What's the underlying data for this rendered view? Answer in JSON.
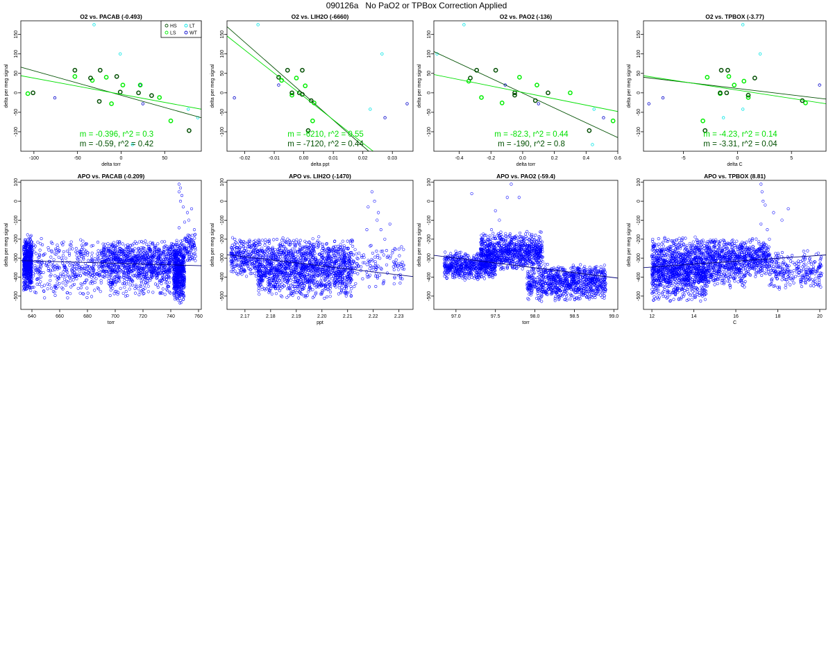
{
  "figure_title": "090126a   No PaO2 or TPBox Correction Applied",
  "colors": {
    "HS": "#004d00",
    "LS": "#00ee00",
    "LT": "#00e5e5",
    "WT": "#0000cc",
    "fit_dark": "#005000",
    "fit_light": "#00e000",
    "apo_points": "#0000ff",
    "apo_fit": "#00007a"
  },
  "legend": [
    {
      "code": "HS",
      "label": "HS",
      "color": "#004d00"
    },
    {
      "code": "LT",
      "label": "LT",
      "color": "#00e5e5"
    },
    {
      "code": "LS",
      "label": "LS",
      "color": "#00ee00"
    },
    {
      "code": "WT",
      "label": "WT",
      "color": "#0000cc"
    }
  ],
  "chart_data": [
    {
      "type": "scatter",
      "title": "O2 vs. PACAB (-0.493)",
      "xlabel": "delta torr",
      "ylabel": "delta per meg signal",
      "xlim": [
        -115,
        92
      ],
      "ylim": [
        -150,
        185
      ],
      "xticks": [
        -100,
        -50,
        0,
        50
      ],
      "yticks": [
        -100,
        -50,
        0,
        50,
        100,
        150
      ],
      "legend": true,
      "points": {
        "HS": [
          [
            -101,
            0
          ],
          [
            -53,
            58
          ],
          [
            -35,
            38
          ],
          [
            -24,
            58
          ],
          [
            -25,
            -22
          ],
          [
            -5,
            42
          ],
          [
            -1,
            2
          ],
          [
            20,
            0
          ],
          [
            35,
            -7
          ],
          [
            78,
            -97
          ]
        ],
        "LS": [
          [
            -107,
            -2
          ],
          [
            -53,
            42
          ],
          [
            -33,
            32
          ],
          [
            -17,
            40
          ],
          [
            -11,
            -28
          ],
          [
            2,
            20
          ],
          [
            22,
            20
          ],
          [
            44,
            -12
          ],
          [
            57,
            -72
          ]
        ],
        "LT": [
          [
            -31,
            175
          ],
          [
            -1,
            100
          ],
          [
            77,
            -42
          ],
          [
            88,
            -64
          ],
          [
            13,
            -133
          ]
        ],
        "WT": [
          [
            -76,
            -13
          ],
          [
            22,
            20
          ],
          [
            25,
            -28
          ]
        ]
      },
      "fits": [
        {
          "m": -0.59,
          "r2": 0.42,
          "label": "m = -0.59, r^2 = 0.42",
          "color": "#005000",
          "line": [
            [
              -115,
              66
            ],
            [
              92,
              -64
            ]
          ]
        },
        {
          "m": -0.396,
          "r2": 0.3,
          "label": "m = -0.396, r^2 = 0.3",
          "color": "#00e000",
          "line": [
            [
              -115,
              44
            ],
            [
              92,
              -42
            ]
          ]
        }
      ]
    },
    {
      "type": "scatter",
      "title": "O2 vs. LIH2O (-6660)",
      "xlabel": "delta ppt",
      "ylabel": "delta per meg signal",
      "xlim": [
        -0.026,
        0.037
      ],
      "ylim": [
        -150,
        185
      ],
      "xticks": [
        -0.02,
        -0.01,
        0.0,
        0.01,
        0.02,
        0.03
      ],
      "yticks": [
        -100,
        -50,
        0,
        50,
        100,
        150
      ],
      "legend": false,
      "points": {
        "HS": [
          [
            -0.0085,
            40
          ],
          [
            -0.0055,
            58
          ],
          [
            -0.004,
            0
          ],
          [
            -0.0015,
            0
          ],
          [
            -0.0005,
            -4
          ],
          [
            -0.0005,
            58
          ],
          [
            0.0025,
            -20
          ],
          [
            0.0015,
            -97
          ]
        ],
        "LS": [
          [
            -0.0075,
            32
          ],
          [
            -0.004,
            -6
          ],
          [
            -0.0025,
            38
          ],
          [
            0.0005,
            18
          ],
          [
            0.0035,
            -26
          ],
          [
            0.003,
            -72
          ]
        ],
        "LT": [
          [
            -0.0155,
            175
          ],
          [
            0.0265,
            100
          ],
          [
            0.0225,
            -42
          ]
        ],
        "WT": [
          [
            -0.0235,
            -13
          ],
          [
            -0.0085,
            20
          ],
          [
            0.0275,
            -64
          ],
          [
            0.035,
            -28
          ]
        ]
      },
      "fits": [
        {
          "m": -7120,
          "r2": 0.44,
          "label": "m = -7120, r^2 = 0.44",
          "color": "#005000",
          "line": [
            [
              -0.026,
              170
            ],
            [
              0.022,
              -150
            ]
          ]
        },
        {
          "m": -6210,
          "r2": 0.55,
          "label": "m = -6210, r^2 = 0.55",
          "color": "#00e000",
          "line": [
            [
              -0.026,
              146
            ],
            [
              0.0235,
              -150
            ]
          ]
        }
      ]
    },
    {
      "type": "scatter",
      "title": "O2 vs. PAO2 (-136)",
      "xlabel": "delta torr",
      "ylabel": "delta per meg signal",
      "xlim": [
        -0.56,
        0.6
      ],
      "ylim": [
        -150,
        185
      ],
      "xticks": [
        -0.4,
        -0.2,
        0.0,
        0.2,
        0.4,
        0.6
      ],
      "yticks": [
        -100,
        -50,
        0,
        50,
        100,
        150
      ],
      "legend": false,
      "points": {
        "HS": [
          [
            -0.33,
            38
          ],
          [
            -0.29,
            58
          ],
          [
            -0.17,
            58
          ],
          [
            -0.05,
            0
          ],
          [
            -0.05,
            -6
          ],
          [
            0.08,
            -20
          ],
          [
            0.16,
            0
          ],
          [
            0.42,
            -97
          ]
        ],
        "LS": [
          [
            -0.34,
            30
          ],
          [
            -0.26,
            -12
          ],
          [
            -0.13,
            -26
          ],
          [
            -0.02,
            40
          ],
          [
            0.09,
            20
          ],
          [
            0.3,
            0
          ],
          [
            0.57,
            -72
          ]
        ],
        "LT": [
          [
            -0.37,
            175
          ],
          [
            -0.54,
            100
          ],
          [
            0.45,
            -42
          ],
          [
            0.44,
            -133
          ]
        ],
        "WT": [
          [
            -0.11,
            20
          ],
          [
            0.1,
            -28
          ],
          [
            0.51,
            -64
          ]
        ]
      },
      "fits": [
        {
          "m": -190,
          "r2": 0.8,
          "label": "m = -190, r^2 = 0.8",
          "color": "#005000",
          "line": [
            [
              -0.56,
              106
            ],
            [
              0.6,
              -115
            ]
          ]
        },
        {
          "m": -82.3,
          "r2": 0.44,
          "label": "m = -82.3, r^2 = 0.44",
          "color": "#00e000",
          "line": [
            [
              -0.56,
              47
            ],
            [
              0.6,
              -48
            ]
          ]
        }
      ]
    },
    {
      "type": "scatter",
      "title": "O2 vs. TPBOX (-3.77)",
      "xlabel": "delta C",
      "ylabel": "delta per meg signal",
      "xlim": [
        -8.7,
        8.2
      ],
      "ylim": [
        -150,
        185
      ],
      "xticks": [
        -5,
        0,
        5
      ],
      "yticks": [
        -100,
        -50,
        0,
        50,
        100,
        150
      ],
      "legend": false,
      "points": {
        "HS": [
          [
            -3.0,
            -97
          ],
          [
            -1.6,
            0
          ],
          [
            -1.5,
            58
          ],
          [
            -1.0,
            0
          ],
          [
            -0.9,
            58
          ],
          [
            1.0,
            -6
          ],
          [
            1.6,
            38
          ],
          [
            6.0,
            -20
          ]
        ],
        "LS": [
          [
            -3.2,
            -72
          ],
          [
            -2.8,
            40
          ],
          [
            -1.6,
            -2
          ],
          [
            -0.8,
            42
          ],
          [
            -0.3,
            20
          ],
          [
            0.6,
            30
          ],
          [
            1.0,
            -12
          ],
          [
            6.3,
            -26
          ]
        ],
        "LT": [
          [
            0.5,
            175
          ],
          [
            2.1,
            100
          ],
          [
            0.5,
            -42
          ],
          [
            -1.3,
            -64
          ]
        ],
        "WT": [
          [
            -8.2,
            -28
          ],
          [
            -6.9,
            -13
          ],
          [
            7.6,
            20
          ]
        ]
      },
      "fits": [
        {
          "m": -3.31,
          "r2": 0.04,
          "label": "m = -3.31, r^2 = 0.04",
          "color": "#005000",
          "line": [
            [
              -8.7,
              40
            ],
            [
              8.2,
              -16
            ]
          ]
        },
        {
          "m": -4.23,
          "r2": 0.14,
          "label": "m = -4.23, r^2 = 0.14",
          "color": "#00e000",
          "line": [
            [
              -8.7,
              44
            ],
            [
              8.2,
              -28
            ]
          ]
        }
      ]
    },
    {
      "type": "scatter",
      "title": "APO vs. PACAB (-0.209)",
      "xlabel": "torr",
      "ylabel": "delta per meg signal",
      "xlim": [
        632,
        762
      ],
      "ylim": [
        -570,
        110
      ],
      "xticks": [
        640,
        660,
        680,
        700,
        720,
        740,
        760
      ],
      "yticks": [
        -500,
        -400,
        -300,
        -200,
        -100,
        0,
        100
      ],
      "legend": false,
      "cloud": [
        {
          "x": [
            634,
            640
          ],
          "y": [
            -480,
            -170
          ],
          "n": 520
        },
        {
          "x": [
            640,
            690
          ],
          "y": [
            -520,
            -190
          ],
          "n": 360
        },
        {
          "x": [
            690,
            742
          ],
          "y": [
            -420,
            -200
          ],
          "n": 820
        },
        {
          "x": [
            695,
            740
          ],
          "y": [
            -520,
            -300
          ],
          "n": 220
        },
        {
          "x": [
            742,
            750
          ],
          "y": [
            -540,
            -200
          ],
          "n": 560
        },
        {
          "x": [
            750,
            758
          ],
          "y": [
            -340,
            -160
          ],
          "n": 80
        }
      ],
      "outliers": [
        [
          746,
          90
        ],
        [
          747,
          70
        ],
        [
          746,
          50
        ],
        [
          748,
          30
        ],
        [
          747,
          0
        ],
        [
          749,
          -30
        ],
        [
          752,
          -60
        ],
        [
          755,
          -40
        ],
        [
          753,
          -100
        ],
        [
          757,
          -150
        ],
        [
          746,
          -140
        ],
        [
          750,
          -110
        ]
      ],
      "fits": [
        {
          "line": [
            [
              632,
              -313
            ],
            [
              762,
              -340
            ]
          ],
          "color": "#00007a"
        }
      ]
    },
    {
      "type": "scatter",
      "title": "APO vs. LIH2O (-1470)",
      "xlabel": "ppt",
      "ylabel": "delta per meg signal",
      "xlim": [
        2.163,
        2.2355
      ],
      "ylim": [
        -570,
        110
      ],
      "xticks": [
        2.17,
        2.18,
        2.19,
        2.2,
        2.21,
        2.22,
        2.23
      ],
      "yticks": [
        -500,
        -400,
        -300,
        -200,
        -100,
        0,
        100
      ],
      "legend": false,
      "cloud": [
        {
          "x": [
            2.1645,
            2.175
          ],
          "y": [
            -400,
            -190
          ],
          "n": 260
        },
        {
          "x": [
            2.175,
            2.212
          ],
          "y": [
            -520,
            -180
          ],
          "n": 1500
        },
        {
          "x": [
            2.212,
            2.232
          ],
          "y": [
            -460,
            -220
          ],
          "n": 120
        }
      ],
      "outliers": [
        [
          2.2195,
          50
        ],
        [
          2.2205,
          0
        ],
        [
          2.218,
          -30
        ],
        [
          2.222,
          -60
        ],
        [
          2.2215,
          -100
        ],
        [
          2.2175,
          -150
        ],
        [
          2.223,
          -150
        ],
        [
          2.2245,
          -200
        ],
        [
          2.2265,
          -120
        ],
        [
          2.231,
          -240
        ],
        [
          2.2265,
          -300
        ]
      ],
      "fits": [
        {
          "line": [
            [
              2.163,
              -282
            ],
            [
              2.2355,
              -397
            ]
          ],
          "color": "#00007a"
        }
      ]
    },
    {
      "type": "scatter",
      "title": "APO vs. PAO2 (-59.4)",
      "xlabel": "torr",
      "ylabel": "delta per meg signal",
      "xlim": [
        96.72,
        99.05
      ],
      "ylim": [
        -570,
        110
      ],
      "xticks": [
        97.0,
        97.5,
        98.0,
        98.5,
        99.0
      ],
      "yticks": [
        -500,
        -400,
        -300,
        -200,
        -100,
        0,
        100
      ],
      "legend": false,
      "cloud": [
        {
          "x": [
            96.85,
            97.5
          ],
          "y": [
            -420,
            -260
          ],
          "n": 600
        },
        {
          "x": [
            97.3,
            98.1
          ],
          "y": [
            -370,
            -160
          ],
          "n": 900
        },
        {
          "x": [
            97.9,
            98.9
          ],
          "y": [
            -530,
            -350
          ],
          "n": 700
        },
        {
          "x": [
            98.1,
            98.9
          ],
          "y": [
            -440,
            -320
          ],
          "n": 200
        }
      ],
      "outliers": [
        [
          97.2,
          40
        ],
        [
          97.7,
          90
        ],
        [
          97.65,
          20
        ],
        [
          97.8,
          20
        ],
        [
          97.5,
          -50
        ],
        [
          97.55,
          -100
        ],
        [
          97.45,
          -150
        ],
        [
          97.68,
          -180
        ],
        [
          97.35,
          -210
        ],
        [
          97.9,
          -160
        ],
        [
          98.05,
          -230
        ]
      ],
      "fits": [
        {
          "line": [
            [
              96.72,
              -285
            ],
            [
              99.05,
              -405
            ]
          ],
          "color": "#00007a"
        }
      ]
    },
    {
      "type": "scatter",
      "title": "APO vs. TPBOX (8.81)",
      "xlabel": "C",
      "ylabel": "delta per meg signal",
      "xlim": [
        11.6,
        20.3
      ],
      "ylim": [
        -570,
        110
      ],
      "xticks": [
        12,
        14,
        16,
        18,
        20
      ],
      "yticks": [
        -500,
        -400,
        -300,
        -200,
        -100,
        0,
        100
      ],
      "legend": false,
      "cloud": [
        {
          "x": [
            12.0,
            14.6
          ],
          "y": [
            -530,
            -180
          ],
          "n": 1200
        },
        {
          "x": [
            14.6,
            17.6
          ],
          "y": [
            -400,
            -190
          ],
          "n": 700
        },
        {
          "x": [
            14.2,
            16.5
          ],
          "y": [
            -460,
            -320
          ],
          "n": 160
        },
        {
          "x": [
            17.6,
            20.1
          ],
          "y": [
            -480,
            -250
          ],
          "n": 260
        }
      ],
      "outliers": [
        [
          17.2,
          90
        ],
        [
          17.25,
          50
        ],
        [
          17.3,
          0
        ],
        [
          17.4,
          -20
        ],
        [
          17.8,
          -60
        ],
        [
          18.5,
          -40
        ],
        [
          17.2,
          -120
        ],
        [
          18.2,
          -100
        ],
        [
          17.5,
          -150
        ],
        [
          17.6,
          -200
        ]
      ],
      "fits": [
        {
          "line": [
            [
              11.6,
              -350
            ],
            [
              20.3,
              -283
            ]
          ],
          "color": "#00007a"
        }
      ]
    }
  ]
}
